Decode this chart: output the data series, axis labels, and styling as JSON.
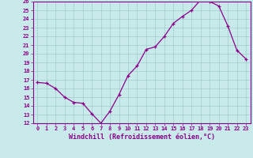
{
  "x": [
    0,
    1,
    2,
    3,
    4,
    5,
    6,
    7,
    8,
    9,
    10,
    11,
    12,
    13,
    14,
    15,
    16,
    17,
    18,
    19,
    20,
    21,
    22,
    23
  ],
  "y": [
    16.7,
    16.6,
    16.0,
    15.0,
    14.4,
    14.3,
    13.1,
    12.0,
    13.4,
    15.3,
    17.5,
    18.6,
    20.5,
    20.8,
    22.0,
    23.5,
    24.3,
    25.0,
    26.2,
    26.0,
    25.5,
    23.2,
    20.4,
    19.4
  ],
  "line_color": "#8B008B",
  "marker": "+",
  "bg_color": "#c8eaea",
  "grid_color": "#a0cccc",
  "xlabel": "Windchill (Refroidissement éolien,°C)",
  "ylim_min": 12,
  "ylim_max": 26,
  "xlim_min": -0.5,
  "xlim_max": 23.5,
  "xtick_labels": [
    "0",
    "1",
    "2",
    "3",
    "4",
    "5",
    "6",
    "7",
    "8",
    "9",
    "10",
    "11",
    "12",
    "13",
    "14",
    "15",
    "16",
    "17",
    "18",
    "19",
    "20",
    "21",
    "22",
    "23"
  ],
  "label_color": "#8B008B",
  "tick_color": "#8B008B",
  "axis_color": "#8B008B",
  "tick_fontsize": 5.0,
  "xlabel_fontsize": 6.0
}
